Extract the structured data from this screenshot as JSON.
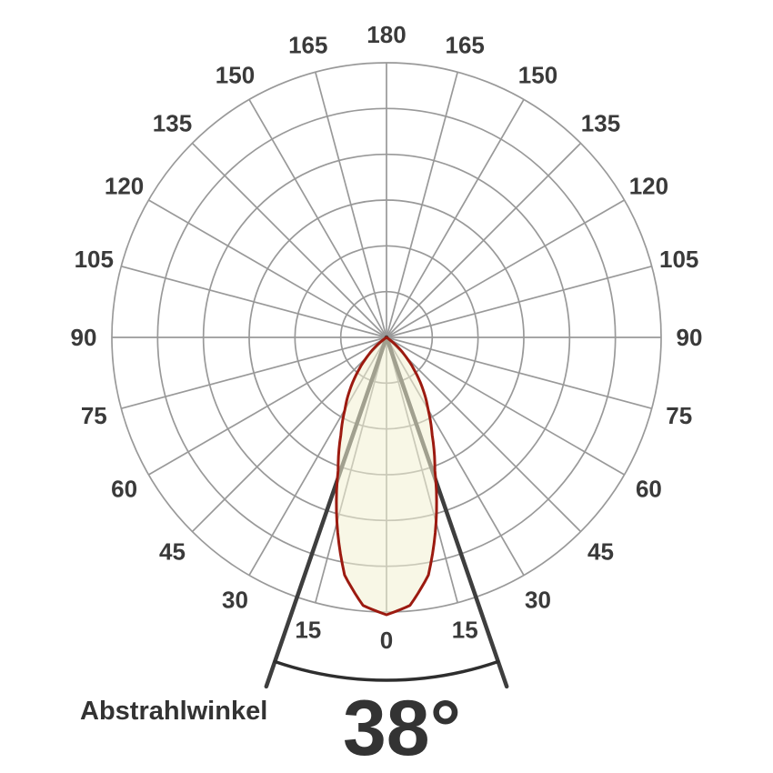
{
  "chart_data": {
    "type": "area",
    "coordinate_system": "polar",
    "description": "Photometric light distribution polar diagram with downward beam lobe",
    "beam_angle_deg": 38,
    "beam_half_angle_deg": 19,
    "rings": 6,
    "spoke_step_deg": 15,
    "angle_labels": [
      {
        "deg": 0,
        "label": "0"
      },
      {
        "deg": 15,
        "label": "15"
      },
      {
        "deg": 30,
        "label": "30"
      },
      {
        "deg": 45,
        "label": "45"
      },
      {
        "deg": 60,
        "label": "60"
      },
      {
        "deg": 75,
        "label": "75"
      },
      {
        "deg": 90,
        "label": "90"
      },
      {
        "deg": 105,
        "label": "105"
      },
      {
        "deg": 120,
        "label": "120"
      },
      {
        "deg": 135,
        "label": "135"
      },
      {
        "deg": 150,
        "label": "150"
      },
      {
        "deg": 165,
        "label": "165"
      },
      {
        "deg": 180,
        "label": "180"
      },
      {
        "deg": 195,
        "label": "165"
      },
      {
        "deg": 210,
        "label": "150"
      },
      {
        "deg": 225,
        "label": "135"
      },
      {
        "deg": 240,
        "label": "120"
      },
      {
        "deg": 255,
        "label": "105"
      },
      {
        "deg": 270,
        "label": "90"
      },
      {
        "deg": 285,
        "label": "75"
      },
      {
        "deg": 300,
        "label": "60"
      },
      {
        "deg": 315,
        "label": "45"
      },
      {
        "deg": 330,
        "label": "30"
      },
      {
        "deg": 345,
        "label": "15"
      }
    ],
    "beam_profile": {
      "symmetric": true,
      "angles_deg": [
        0,
        5,
        10,
        15,
        20,
        25,
        30,
        35,
        40,
        45,
        50,
        55
      ],
      "relative_intensity": [
        1.0,
        0.97,
        0.87,
        0.69,
        0.51,
        0.39,
        0.3,
        0.23,
        0.16,
        0.1,
        0.05,
        0.0
      ]
    },
    "annotation": {
      "label": "Abstrahlwinkel",
      "value": "38°"
    },
    "colors": {
      "background": "#ffffff",
      "grid": "#999999",
      "label_text": "#3a3a3a",
      "lobe_fill": "#f3f0d2",
      "lobe_fill_opacity": 0.55,
      "lobe_stroke": "#9c1a10",
      "beam_line": "#3e3e3e",
      "arc": "#2e2e2e",
      "annotation_text": "#333333"
    }
  }
}
